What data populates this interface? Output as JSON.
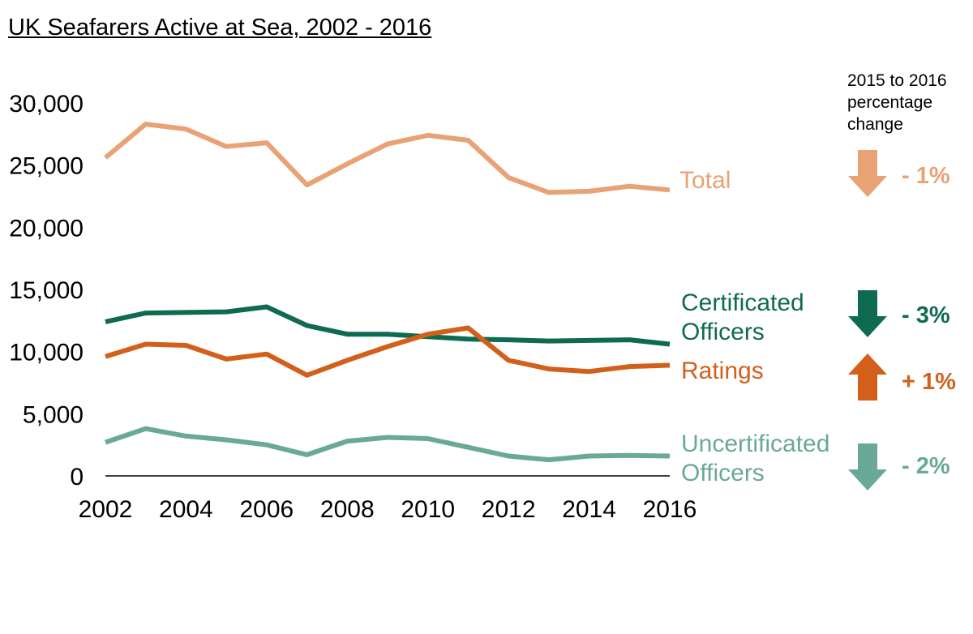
{
  "chart_data": {
    "type": "line",
    "title": "UK Seafarers Active at Sea, 2002 - 2016",
    "x": [
      2002,
      2003,
      2004,
      2005,
      2006,
      2007,
      2008,
      2009,
      2010,
      2011,
      2012,
      2013,
      2014,
      2015,
      2016
    ],
    "xticks": [
      "2002",
      "2004",
      "2006",
      "2008",
      "2010",
      "2012",
      "2014",
      "2016"
    ],
    "yticks": [
      "0",
      "5,000",
      "10,000",
      "15,000",
      "20,000",
      "25,000",
      "30,000"
    ],
    "ylim": [
      0,
      30000
    ],
    "xlim": [
      2002,
      2016
    ],
    "grid": false,
    "series": [
      {
        "name": "Total",
        "color": "#E8A276",
        "values": [
          25600,
          28300,
          27900,
          26500,
          26800,
          23400,
          25100,
          26700,
          27400,
          27000,
          24000,
          22800,
          22900,
          23300,
          23000
        ]
      },
      {
        "name": "Certificated Officers",
        "color": "#0E6B52",
        "values": [
          12400,
          13100,
          13150,
          13200,
          13600,
          12100,
          11400,
          11400,
          11200,
          11000,
          10950,
          10850,
          10900,
          10950,
          10600
        ]
      },
      {
        "name": "Ratings",
        "color": "#D2601A",
        "values": [
          9600,
          10600,
          10500,
          9400,
          9800,
          8100,
          9300,
          10400,
          11400,
          11900,
          9300,
          8600,
          8400,
          8800,
          8900
        ]
      },
      {
        "name": "Uncertificated Officers",
        "color": "#6AA898",
        "values": [
          2700,
          3800,
          3200,
          2900,
          2500,
          1700,
          2800,
          3100,
          3000,
          2300,
          1600,
          1300,
          1600,
          1650,
          1600
        ]
      }
    ],
    "change_header": "2015 to 2016 percentage change",
    "changes": [
      {
        "series": "Total",
        "label": "- 1%",
        "direction": "down",
        "color": "#E8A276"
      },
      {
        "series": "Certificated Officers",
        "label": "- 3%",
        "direction": "down",
        "color": "#0E6B52"
      },
      {
        "series": "Ratings",
        "label": "+ 1%",
        "direction": "up",
        "color": "#D2601A"
      },
      {
        "series": "Uncertificated Officers",
        "label": "- 2%",
        "direction": "down",
        "color": "#6AA898"
      }
    ]
  }
}
